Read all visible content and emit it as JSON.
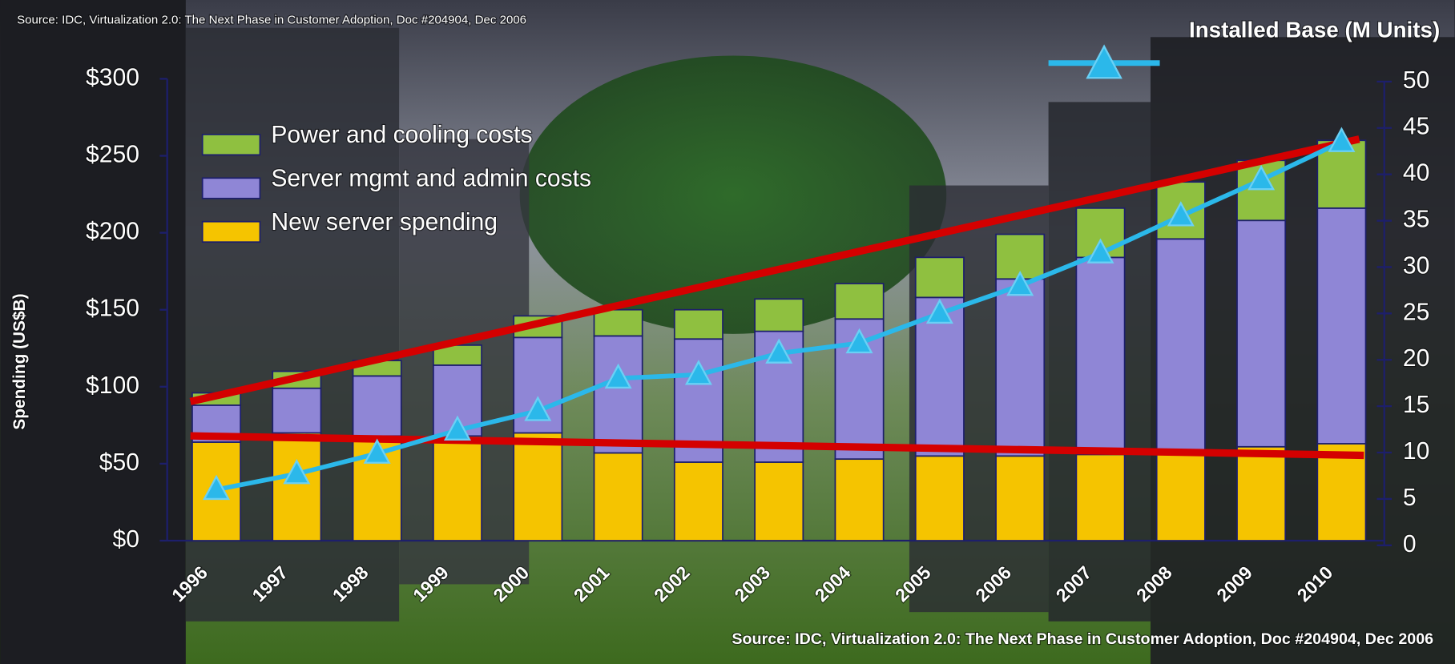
{
  "chart_data": {
    "type": "bar_line",
    "source_top": "Source: IDC, Virtualization 2.0: The Next Phase in Customer Adoption,  Doc #204904, Dec 2006",
    "source_bottom": "Source: IDC, Virtualization 2.0: The Next Phase in Customer Adoption, Doc #204904, Dec 2006",
    "ylabel": "Spending (US$B)",
    "y2label": "Installed Base (M Units)",
    "categories": [
      "1996",
      "1997",
      "1998",
      "1999",
      "2000",
      "2001",
      "2002",
      "2003",
      "2004",
      "2005",
      "2006",
      "2007",
      "2008",
      "2009",
      "2010"
    ],
    "series": [
      {
        "name": "New server spending",
        "color": "#f5c400",
        "values": [
          64,
          70,
          68,
          68,
          70,
          57,
          51,
          51,
          53,
          55,
          55,
          56,
          57,
          61,
          63
        ]
      },
      {
        "name": "Server mgmt and admin costs",
        "color": "#8f86d6",
        "values": [
          24,
          29,
          39,
          46,
          62,
          76,
          80,
          85,
          91,
          103,
          115,
          128,
          139,
          147,
          153
        ]
      },
      {
        "name": "Power and cooling costs",
        "color": "#8fc040",
        "values": [
          8,
          11,
          10,
          13,
          14,
          17,
          19,
          21,
          23,
          26,
          29,
          32,
          37,
          39,
          44
        ]
      },
      {
        "type": "line",
        "axis": "y2",
        "color": "#2bb8ea",
        "values": [
          6,
          7.7,
          9.9,
          12.4,
          14.5,
          18,
          18.4,
          20.7,
          21.8,
          25,
          28,
          31.5,
          35.5,
          39.4,
          43.5
        ]
      }
    ],
    "ylim": [
      0,
      300
    ],
    "yticks": [
      {
        "value": 0,
        "label": "$0"
      },
      {
        "value": 50,
        "label": "$50"
      },
      {
        "value": 100,
        "label": "$100"
      },
      {
        "value": 150,
        "label": "$150"
      },
      {
        "value": 200,
        "label": "$200"
      },
      {
        "value": 250,
        "label": "$250"
      },
      {
        "value": 300,
        "label": "$300"
      }
    ],
    "y2lim": [
      0,
      50
    ],
    "y2ticks": [
      0,
      5,
      10,
      15,
      20,
      25,
      30,
      35,
      40,
      45,
      50
    ]
  }
}
